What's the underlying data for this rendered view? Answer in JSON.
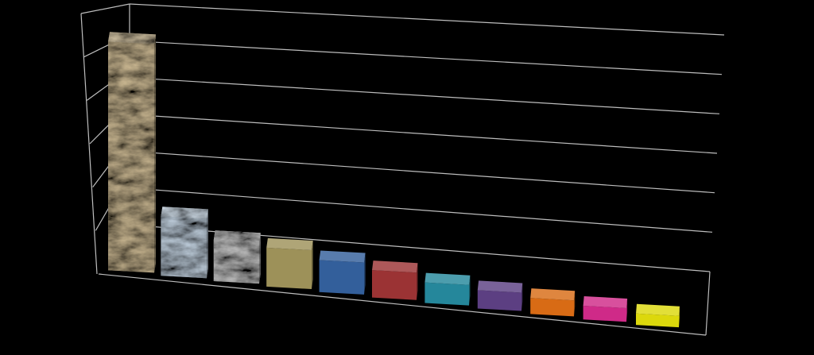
{
  "chart_data": {
    "type": "bar",
    "title": "",
    "xlabel": "",
    "ylabel": "",
    "categories": [
      "",
      "",
      "",
      "",
      "",
      "",
      "",
      "",
      "",
      "",
      ""
    ],
    "values": [
      50,
      13,
      9,
      8.5,
      7,
      6,
      4.5,
      4,
      3.5,
      3,
      2.5
    ],
    "ylim": [
      0,
      60
    ],
    "grid": true,
    "legend": "none",
    "projection": "3d-perspective",
    "colors": [
      "#d8c49c",
      "#cfdfee",
      "#d2d2d2",
      "#9d9159",
      "#335f9b",
      "#9b3334",
      "#25879b",
      "#5c3f82",
      "#d86b15",
      "#cf2a88",
      "#dcd80c"
    ],
    "textures": [
      "marble-tan",
      "marble-blue",
      "marble-white",
      "solid",
      "solid",
      "solid",
      "solid",
      "solid",
      "solid",
      "solid",
      "solid"
    ]
  }
}
